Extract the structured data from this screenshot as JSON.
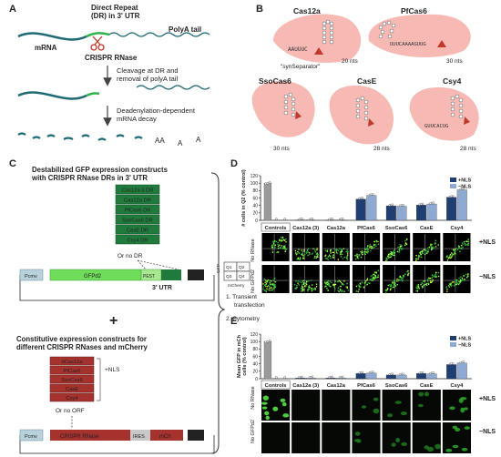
{
  "panels": {
    "a": {
      "letter": "A",
      "dr_label_1": "Direct Repeat",
      "dr_label_2": "(DR) in 3' UTR",
      "polya_label": "PolyA tail",
      "mrna_label": "mRNA",
      "rnase_label": "CRISPR RNase",
      "step1_1": "Cleavage at DR and",
      "step1_2": "removal of polyA tail",
      "step2_1": "Deadenylation-dependent",
      "step2_2": "mRNA decay",
      "decay_letters": [
        "AA",
        "A",
        "A"
      ]
    },
    "b": {
      "letter": "B",
      "items": [
        {
          "name": "Cas12a",
          "nts": "20 nts",
          "seq": "AAUUUC",
          "seq2": "AAUU"
        },
        {
          "name": "PfCas6",
          "nts": "30 nts",
          "seq": "UUUCAAAAGUUG",
          "seq2": ""
        },
        {
          "name": "SsoCas6",
          "nts": "30 nts",
          "seq": "",
          "seq2": ""
        },
        {
          "name": "CasE",
          "nts": "28 nts",
          "seq": "",
          "seq2": ""
        },
        {
          "name": "Csy4",
          "nts": "28 nts",
          "seq": "GUUCACUG",
          "seq2": ""
        }
      ],
      "syn_separator": "\"synSeparator\""
    },
    "c": {
      "letter": "C",
      "title1_1": "Destabilized GFP expression constructs",
      "title1_2": "with CRISPR RNase DRs in 3' UTR",
      "dr_list": [
        "Cas12a 3 DR",
        "Cas12a DR",
        "PfCas6 DR",
        "SsoCas6 DR",
        "CasE DR",
        "Csy4 DR"
      ],
      "dr_none": "Or no DR",
      "construct1": {
        "promoter": "Pcmv",
        "gene": "GFPd2",
        "pest": "PEST",
        "pa": "pA",
        "utr": "3' UTR"
      },
      "plus": "+",
      "title2_1": "Constitutive expression constructs for",
      "title2_2": "different CRISPR RNases and mCherry",
      "rnase_list": [
        "dCas12a",
        "PfCas6",
        "SsoCas6",
        "CasE",
        "Csy4"
      ],
      "nls": "+NLS",
      "orf_none": "Or no ORF",
      "construct2": {
        "promoter": "Pcmv",
        "gene": "CRISPR RNase",
        "ires": "IRES",
        "mch": "mCh",
        "pa": "pA"
      },
      "step_1": "1.  Transient",
      "step_1b": "transfection",
      "step_2": "2.  Cytometry"
    },
    "d": {
      "letter": "D",
      "row_labels": [
        "No RNase",
        "No GFPd2"
      ],
      "side_labels": [
        "+NLS",
        "−NLS"
      ],
      "gate_axis_y": "GFP",
      "gate_axis_x": "mCherry",
      "quadrants": [
        "Q1",
        "Q2",
        "Q3",
        "Q4"
      ]
    },
    "e": {
      "letter": "E",
      "row_labels": [
        "No RNase",
        "No GFPd2"
      ],
      "side_labels": [
        "+NLS",
        "−NLS"
      ]
    }
  },
  "colors": {
    "nls_plus": "#1f3f73",
    "nls_minus": "#8eaad3",
    "control": "#9a9a9a",
    "dr_green": "#1f7a3c",
    "rnase_red": "#a6322e",
    "blob": "#f6b9b3",
    "mrna": "#1f6b75",
    "dr_seg": "#2fb34a"
  },
  "chart_data": [
    {
      "type": "bar",
      "panel": "D",
      "ylabel": "# cells in Q2 (% control)",
      "ylim": [
        0,
        120
      ],
      "yticks": [
        0,
        20,
        40,
        60,
        80,
        100,
        120
      ],
      "categories": [
        "Controls",
        "Cas12a (3)",
        "Cas12a",
        "PfCas6",
        "SsoCas6",
        "CasE",
        "Csy4"
      ],
      "control_values": [
        100,
        1,
        1
      ],
      "series": [
        {
          "name": "+NLS",
          "values": [
            null,
            1,
            1,
            57,
            39,
            41,
            62
          ]
        },
        {
          "name": "−NLS",
          "values": [
            null,
            1,
            1,
            67,
            38,
            44,
            82
          ]
        }
      ],
      "legend": "top-right"
    },
    {
      "type": "bar",
      "panel": "E",
      "ylabel_1": "Mean GFP in mCh",
      "ylabel_2": "cells (% control)",
      "ylim": [
        0,
        120
      ],
      "yticks": [
        0,
        20,
        40,
        60,
        80,
        100,
        120
      ],
      "categories": [
        "Controls",
        "Cas12a (3)",
        "Cas12a",
        "PfCas6",
        "SsoCas6",
        "CasE",
        "Csy4"
      ],
      "control_values": [
        100,
        1,
        1
      ],
      "series": [
        {
          "name": "+NLS",
          "values": [
            null,
            2,
            2,
            14,
            10,
            14,
            38
          ]
        },
        {
          "name": "−NLS",
          "values": [
            null,
            2,
            2,
            15,
            10,
            13,
            42
          ]
        }
      ],
      "legend": "top-right"
    }
  ]
}
